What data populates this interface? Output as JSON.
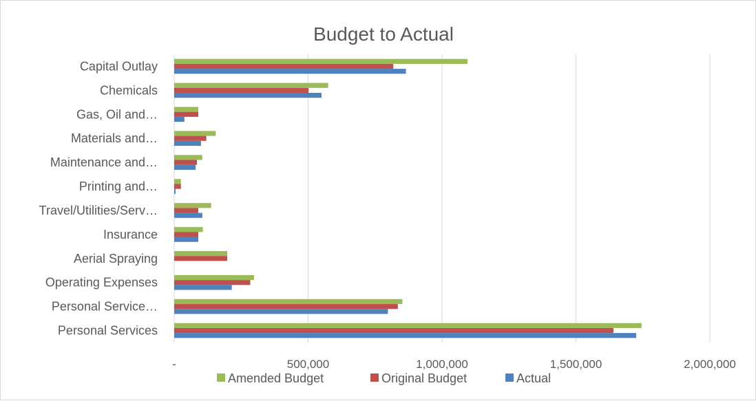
{
  "chart_data": {
    "type": "bar",
    "orientation": "horizontal",
    "title": "Budget to Actual",
    "categories": [
      "Capital Outlay",
      "Chemicals",
      "Gas, Oil and…",
      "Materials and…",
      "Maintenance and…",
      "Printing and…",
      "Travel/Utilities/Serv…",
      "Insurance",
      "Aerial Spraying",
      "Operating Expenses",
      "Personal Service…",
      "Personal Services"
    ],
    "series": [
      {
        "name": "Amended Budget",
        "color": "#9bbb59",
        "values": [
          1095000,
          575000,
          90000,
          155000,
          105000,
          25000,
          138000,
          107000,
          198000,
          298000,
          852000,
          1745000
        ]
      },
      {
        "name": "Original Budget",
        "color": "#c0504d",
        "values": [
          818000,
          502000,
          90000,
          120000,
          85000,
          25000,
          90000,
          90000,
          198000,
          284000,
          835000,
          1640000
        ]
      },
      {
        "name": "Actual",
        "color": "#4f81bd",
        "values": [
          865000,
          550000,
          38000,
          100000,
          80000,
          5000,
          105000,
          90000,
          0,
          215000,
          798000,
          1725000
        ]
      }
    ],
    "xlim": [
      0,
      2000000
    ],
    "x_ticks": [
      0,
      500000,
      1000000,
      1500000,
      2000000
    ],
    "x_tick_labels": [
      "-",
      "500,000",
      "1,000,000",
      "1,500,000",
      "2,000,000"
    ],
    "grid": true,
    "legend_position": "bottom"
  }
}
